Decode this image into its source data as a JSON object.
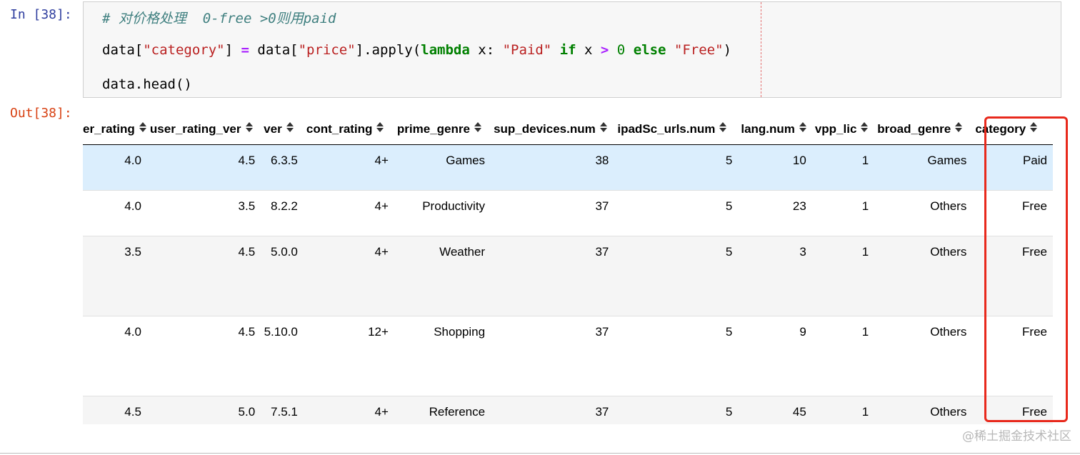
{
  "cell": {
    "in_prompt": "In [38]:",
    "out_prompt": "Out[38]:",
    "code": {
      "comment": "# 对价格处理  0-free >0则用paid",
      "line2": {
        "p1": "data[",
        "s1": "\"category\"",
        "p2": "] ",
        "op1": "=",
        "p3": " data[",
        "s2": "\"price\"",
        "p4": "].apply(",
        "kw1": "lambda",
        "p5": " x: ",
        "s3": "\"Paid\"",
        "p6": " ",
        "kw2": "if",
        "p7": " x ",
        "op2": ">",
        "p8": " ",
        "n1": "0",
        "p9": " ",
        "kw3": "else",
        "p10": " ",
        "s4": "\"Free\"",
        "p11": ")"
      },
      "line3": "data.head()"
    }
  },
  "table": {
    "columns": [
      {
        "label": "er_rating"
      },
      {
        "label": "user_rating_ver"
      },
      {
        "label": "ver"
      },
      {
        "label": "cont_rating"
      },
      {
        "label": "prime_genre"
      },
      {
        "label": "sup_devices.num"
      },
      {
        "label": "ipadSc_urls.num"
      },
      {
        "label": "lang.num"
      },
      {
        "label": "vpp_lic"
      },
      {
        "label": "broad_genre"
      },
      {
        "label": "category"
      }
    ],
    "rows": [
      [
        "4.0",
        "4.5",
        "6.3.5",
        "4+",
        "Games",
        "38",
        "5",
        "10",
        "1",
        "Games",
        "Paid"
      ],
      [
        "4.0",
        "3.5",
        "8.2.2",
        "4+",
        "Productivity",
        "37",
        "5",
        "23",
        "1",
        "Others",
        "Free"
      ],
      [
        "3.5",
        "4.5",
        "5.0.0",
        "4+",
        "Weather",
        "37",
        "5",
        "3",
        "1",
        "Others",
        "Free"
      ],
      [
        "4.0",
        "4.5",
        "5.10.0",
        "12+",
        "Shopping",
        "37",
        "5",
        "9",
        "1",
        "Others",
        "Free"
      ],
      [
        "4.5",
        "5.0",
        "7.5.1",
        "4+",
        "Reference",
        "37",
        "5",
        "45",
        "1",
        "Others",
        "Free"
      ]
    ]
  },
  "watermark": "@稀土掘金技术社区",
  "colors": {
    "highlight": "#e8291c",
    "selected_row": "#dbeefd",
    "in_prompt": "#303f9f",
    "out_prompt": "#d84315"
  }
}
